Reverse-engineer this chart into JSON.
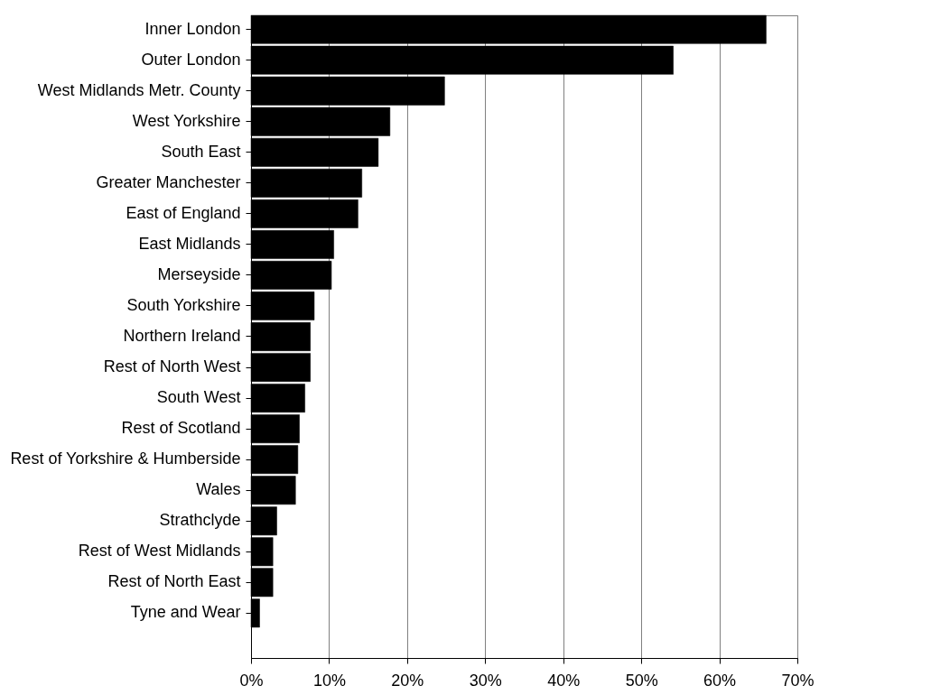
{
  "chart_data": {
    "type": "bar",
    "orientation": "horizontal",
    "categories": [
      "Inner London",
      "Outer London",
      "West Midlands Metr. County",
      "West Yorkshire",
      "South East",
      "Greater Manchester",
      "East of England",
      "East Midlands",
      "Merseyside",
      "South Yorkshire",
      "Northern Ireland",
      "Rest of North West",
      "South West",
      "Rest of Scotland",
      "Rest of Yorkshire & Humberside",
      "Wales",
      "Strathclyde",
      "Rest of West Midlands",
      "Rest of North East",
      "Tyne and Wear"
    ],
    "values": [
      66,
      54.1,
      24.8,
      17.8,
      16.3,
      14.2,
      13.7,
      10.6,
      10.3,
      8.1,
      7.6,
      7.6,
      6.9,
      6.2,
      6.0,
      5.7,
      3.3,
      2.8,
      2.8,
      1.1
    ],
    "color": "#000000",
    "xlim": [
      0,
      70
    ],
    "xticks": [
      {
        "value": 0,
        "label": "0%"
      },
      {
        "value": 10,
        "label": "10%"
      },
      {
        "value": 20,
        "label": "20%"
      },
      {
        "value": 30,
        "label": "30%"
      },
      {
        "value": 40,
        "label": "40%"
      },
      {
        "value": 50,
        "label": "50%"
      },
      {
        "value": 60,
        "label": "60%"
      },
      {
        "value": 70,
        "label": "70%"
      }
    ],
    "grid": "x"
  }
}
